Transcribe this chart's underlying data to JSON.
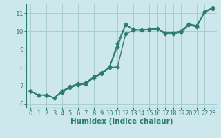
{
  "background_color": "#cde8ec",
  "grid_color": "#a8cdd4",
  "line_color": "#2d7d6e",
  "xlabel": "Humidex (Indice chaleur)",
  "xlim": [
    -0.5,
    23.5
  ],
  "ylim": [
    5.8,
    11.5
  ],
  "yticks": [
    6,
    7,
    8,
    9,
    10,
    11
  ],
  "xticks": [
    0,
    1,
    2,
    3,
    4,
    5,
    6,
    7,
    8,
    9,
    10,
    11,
    12,
    13,
    14,
    15,
    16,
    17,
    18,
    19,
    20,
    21,
    22,
    23
  ],
  "series1_x": [
    0,
    1,
    2,
    3,
    4,
    5,
    6,
    7,
    8,
    9,
    10,
    11,
    12,
    13,
    14,
    15,
    16,
    17,
    18,
    19,
    20,
    21,
    22,
    23
  ],
  "series1_y": [
    6.7,
    6.5,
    6.5,
    6.35,
    6.65,
    6.9,
    7.05,
    7.1,
    7.45,
    7.65,
    8.0,
    8.05,
    9.85,
    10.05,
    10.1,
    10.1,
    10.15,
    9.85,
    9.85,
    9.95,
    10.35,
    10.25,
    11.05,
    11.25
  ],
  "series2_x": [
    0,
    1,
    2,
    3,
    4,
    5,
    6,
    7,
    8,
    9,
    10,
    11,
    12,
    13,
    14,
    15,
    16,
    17,
    18,
    19,
    20,
    21,
    22,
    23
  ],
  "series2_y": [
    6.7,
    6.5,
    6.5,
    6.35,
    6.7,
    6.95,
    7.1,
    7.15,
    7.5,
    7.7,
    8.05,
    9.15,
    10.35,
    10.1,
    10.05,
    10.1,
    10.15,
    9.9,
    9.9,
    10.0,
    10.38,
    10.3,
    11.08,
    11.28
  ],
  "series3_x": [
    0,
    1,
    2,
    3,
    4,
    5,
    6,
    7,
    8,
    9,
    10,
    11,
    12,
    13,
    14,
    15,
    16,
    17,
    18,
    19,
    20,
    21,
    22,
    23
  ],
  "series3_y": [
    6.7,
    6.5,
    6.5,
    6.35,
    6.72,
    6.97,
    7.12,
    7.17,
    7.52,
    7.72,
    8.07,
    9.35,
    10.38,
    10.12,
    10.07,
    10.12,
    10.17,
    9.92,
    9.92,
    10.02,
    10.4,
    10.32,
    11.1,
    11.3
  ],
  "marker": "D",
  "markersize": 2.5,
  "linewidth": 1.0,
  "font_color": "#2d7d6e",
  "tick_fontsize": 6.0,
  "xlabel_fontsize": 7.5
}
